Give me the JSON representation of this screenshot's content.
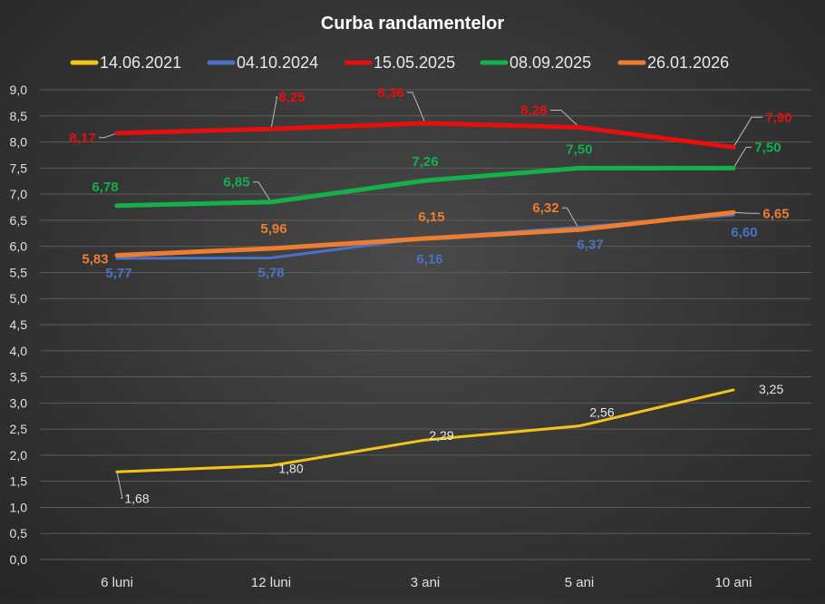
{
  "chart_data": {
    "type": "line",
    "title": "Curba randamentelor",
    "categories": [
      "6 luni",
      "12 luni",
      "3 ani",
      "5 ani",
      "10 ani"
    ],
    "ylim": [
      0,
      9
    ],
    "yticks": [
      "0,0",
      "0,5",
      "1,0",
      "1,5",
      "2,0",
      "2,5",
      "3,0",
      "3,5",
      "4,0",
      "4,5",
      "5,0",
      "5,5",
      "6,0",
      "6,5",
      "7,0",
      "7,5",
      "8,0",
      "8,5",
      "9,0"
    ],
    "grid": true,
    "legend_position": "top",
    "series": [
      {
        "name": "14.06.2021",
        "color": "#f2c518",
        "values": [
          1.68,
          1.8,
          2.29,
          2.56,
          3.25
        ],
        "labels": [
          "1,68",
          "1,80",
          "2,29",
          "2,56",
          "3,25"
        ],
        "label_color": "#e8e8e8"
      },
      {
        "name": "04.10.2024",
        "color": "#4a72c4",
        "values": [
          5.77,
          5.78,
          6.16,
          6.37,
          6.6
        ],
        "labels": [
          "5,77",
          "5,78",
          "6,16",
          "6,37",
          "6,60"
        ],
        "label_color": "#4a72c4"
      },
      {
        "name": "15.05.2025",
        "color": "#e60f0f",
        "values": [
          8.17,
          8.25,
          8.36,
          8.28,
          7.9
        ],
        "labels": [
          "8,17",
          "8,25",
          "8,36",
          "8,28",
          "7,90"
        ],
        "label_color": "#e60f0f"
      },
      {
        "name": "08.09.2025",
        "color": "#14b04a",
        "values": [
          6.78,
          6.85,
          7.26,
          7.5,
          7.5
        ],
        "labels": [
          "6,78",
          "6,85",
          "7,26",
          "7,50",
          "7,50"
        ],
        "label_color": "#14b04a"
      },
      {
        "name": "26.01.2026",
        "color": "#ed7d31",
        "values": [
          5.83,
          5.96,
          6.15,
          6.32,
          6.65
        ],
        "labels": [
          "5,83",
          "5,96",
          "6,15",
          "6,32",
          "6,65"
        ],
        "label_color": "#ed7d31"
      }
    ]
  }
}
